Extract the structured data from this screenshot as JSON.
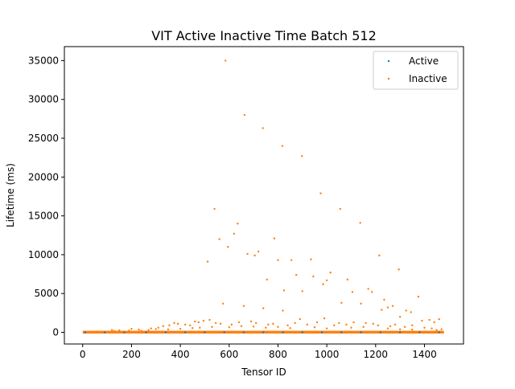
{
  "chart_data": {
    "type": "scatter",
    "title": "VIT Active Inactive Time Batch 512",
    "xlabel": "Tensor ID",
    "ylabel": "Lifetime (ms)",
    "xlim": [
      -75,
      1560
    ],
    "ylim": [
      -1500,
      36800
    ],
    "xticks": [
      0,
      200,
      400,
      600,
      800,
      1000,
      1200,
      1400
    ],
    "yticks": [
      0,
      5000,
      10000,
      15000,
      20000,
      25000,
      30000,
      35000
    ],
    "legend_position": "top-right",
    "series": [
      {
        "name": "Active",
        "color": "#1f77b4",
        "points": [
          [
            10,
            5
          ],
          [
            90,
            12
          ],
          [
            170,
            8
          ],
          [
            260,
            15
          ],
          [
            340,
            6
          ],
          [
            420,
            10
          ],
          [
            500,
            9
          ],
          [
            580,
            14
          ],
          [
            660,
            7
          ],
          [
            740,
            11
          ],
          [
            820,
            6
          ],
          [
            900,
            13
          ],
          [
            980,
            8
          ],
          [
            1060,
            10
          ],
          [
            1140,
            7
          ],
          [
            1220,
            12
          ],
          [
            1300,
            9
          ],
          [
            1380,
            6
          ],
          [
            1460,
            11
          ]
        ]
      },
      {
        "name": "Inactive",
        "color": "#ff7f0e",
        "points": [
          [
            585,
            35000
          ],
          [
            663,
            28000
          ],
          [
            738,
            26300
          ],
          [
            818,
            24000
          ],
          [
            898,
            22700
          ],
          [
            975,
            17900
          ],
          [
            1055,
            15900
          ],
          [
            1137,
            14100
          ],
          [
            635,
            14000
          ],
          [
            540,
            15900
          ],
          [
            620,
            12700
          ],
          [
            560,
            12000
          ],
          [
            595,
            11000
          ],
          [
            785,
            12100
          ],
          [
            1215,
            9900
          ],
          [
            1295,
            8100
          ],
          [
            512,
            9100
          ],
          [
            675,
            10100
          ],
          [
            705,
            9900
          ],
          [
            720,
            10400
          ],
          [
            800,
            9300
          ],
          [
            855,
            9300
          ],
          [
            935,
            9400
          ],
          [
            1015,
            7700
          ],
          [
            1000,
            6700
          ],
          [
            945,
            7200
          ],
          [
            985,
            6200
          ],
          [
            755,
            6800
          ],
          [
            875,
            7400
          ],
          [
            1085,
            6800
          ],
          [
            1105,
            5200
          ],
          [
            1170,
            5600
          ],
          [
            1185,
            5200
          ],
          [
            1250,
            3200
          ],
          [
            1235,
            4200
          ],
          [
            1325,
            2800
          ],
          [
            1345,
            2600
          ],
          [
            1375,
            4600
          ],
          [
            575,
            3700
          ],
          [
            660,
            3400
          ],
          [
            740,
            3100
          ],
          [
            820,
            2800
          ],
          [
            900,
            5300
          ],
          [
            825,
            5400
          ],
          [
            1060,
            3800
          ],
          [
            1140,
            3700
          ],
          [
            1300,
            2000
          ],
          [
            1390,
            1500
          ],
          [
            1420,
            1600
          ],
          [
            1460,
            1700
          ],
          [
            1440,
            1300
          ],
          [
            1270,
            3400
          ],
          [
            1225,
            2900
          ],
          [
            120,
            300
          ],
          [
            150,
            250
          ],
          [
            200,
            450
          ],
          [
            240,
            200
          ],
          [
            280,
            500
          ],
          [
            310,
            600
          ],
          [
            330,
            800
          ],
          [
            355,
            900
          ],
          [
            375,
            1200
          ],
          [
            390,
            1100
          ],
          [
            420,
            1000
          ],
          [
            440,
            900
          ],
          [
            460,
            1400
          ],
          [
            475,
            1300
          ],
          [
            495,
            1500
          ],
          [
            520,
            1600
          ],
          [
            545,
            1200
          ],
          [
            565,
            1100
          ],
          [
            610,
            1000
          ],
          [
            640,
            1300
          ],
          [
            690,
            1400
          ],
          [
            710,
            1200
          ],
          [
            760,
            1000
          ],
          [
            780,
            1100
          ],
          [
            840,
            900
          ],
          [
            870,
            1200
          ],
          [
            890,
            1700
          ],
          [
            920,
            1000
          ],
          [
            960,
            1300
          ],
          [
            990,
            1800
          ],
          [
            1030,
            900
          ],
          [
            1050,
            1200
          ],
          [
            1080,
            1000
          ],
          [
            1110,
            1300
          ],
          [
            1160,
            1200
          ],
          [
            1190,
            1100
          ],
          [
            1210,
            900
          ],
          [
            1260,
            800
          ],
          [
            1280,
            1000
          ],
          [
            1320,
            700
          ],
          [
            1350,
            900
          ],
          [
            1400,
            600
          ],
          [
            1430,
            500
          ],
          [
            1470,
            400
          ],
          [
            60,
            100
          ],
          [
            130,
            180
          ],
          [
            190,
            220
          ],
          [
            230,
            350
          ],
          [
            270,
            300
          ],
          [
            300,
            420
          ],
          [
            350,
            380
          ],
          [
            400,
            450
          ],
          [
            450,
            550
          ],
          [
            480,
            600
          ],
          [
            530,
            700
          ],
          [
            600,
            650
          ],
          [
            650,
            800
          ],
          [
            700,
            750
          ],
          [
            750,
            600
          ],
          [
            800,
            700
          ],
          [
            850,
            550
          ],
          [
            950,
            650
          ],
          [
            1000,
            500
          ],
          [
            1100,
            600
          ],
          [
            1150,
            700
          ],
          [
            1250,
            500
          ],
          [
            1300,
            400
          ],
          [
            1350,
            350
          ],
          [
            1450,
            300
          ]
        ]
      }
    ]
  }
}
